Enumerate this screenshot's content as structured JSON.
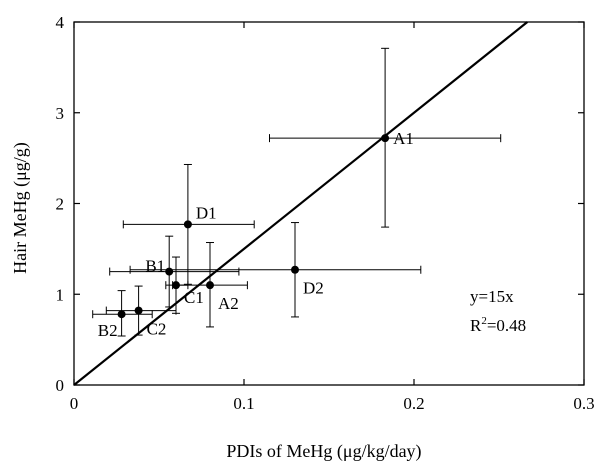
{
  "chart_data": {
    "type": "scatter",
    "title": "",
    "xlabel": "PDIs of MeHg (μg/kg/day)",
    "ylabel": "Hair MeHg (μg/g)",
    "xlim": [
      0,
      0.3
    ],
    "ylim": [
      0,
      4
    ],
    "x_ticks": [
      0,
      0.1,
      0.2,
      0.3
    ],
    "x_tick_labels": [
      "0",
      "0.1",
      "0.2",
      "0.3"
    ],
    "y_ticks": [
      0,
      1,
      2,
      3,
      4
    ],
    "y_tick_labels": [
      "0",
      "1",
      "2",
      "3",
      "4"
    ],
    "grid": false,
    "points": [
      {
        "label": "A1",
        "x": 0.183,
        "y": 2.72,
        "x_err": [
          0.115,
          0.251
        ],
        "y_err": [
          1.74,
          3.71
        ]
      },
      {
        "label": "D1",
        "x": 0.067,
        "y": 1.77,
        "x_err": [
          0.029,
          0.106
        ],
        "y_err": [
          1.11,
          2.43
        ]
      },
      {
        "label": "D2",
        "x": 0.13,
        "y": 1.27,
        "x_err": [
          0.033,
          0.204
        ],
        "y_err": [
          0.75,
          1.79
        ]
      },
      {
        "label": "B1",
        "x": 0.056,
        "y": 1.25,
        "x_err": [
          0.021,
          0.097
        ],
        "y_err": [
          0.86,
          1.64
        ]
      },
      {
        "label": "A2",
        "x": 0.08,
        "y": 1.1,
        "x_err": [
          0.058,
          0.102
        ],
        "y_err": [
          0.64,
          1.57
        ]
      },
      {
        "label": "C1",
        "x": 0.06,
        "y": 1.1,
        "x_err": [
          0.054,
          0.067
        ],
        "y_err": [
          0.79,
          1.41
        ]
      },
      {
        "label": "C2",
        "x": 0.038,
        "y": 0.82,
        "x_err": [
          0.019,
          0.06
        ],
        "y_err": [
          0.55,
          1.09
        ]
      },
      {
        "label": "B2",
        "x": 0.028,
        "y": 0.78,
        "x_err": [
          0.011,
          0.046
        ],
        "y_err": [
          0.54,
          1.04
        ]
      }
    ],
    "fit_line": {
      "equation": "y=15x",
      "slope": 15,
      "r2_text": "R",
      "r2_sup": "2",
      "r2_value": "=0.48"
    }
  }
}
